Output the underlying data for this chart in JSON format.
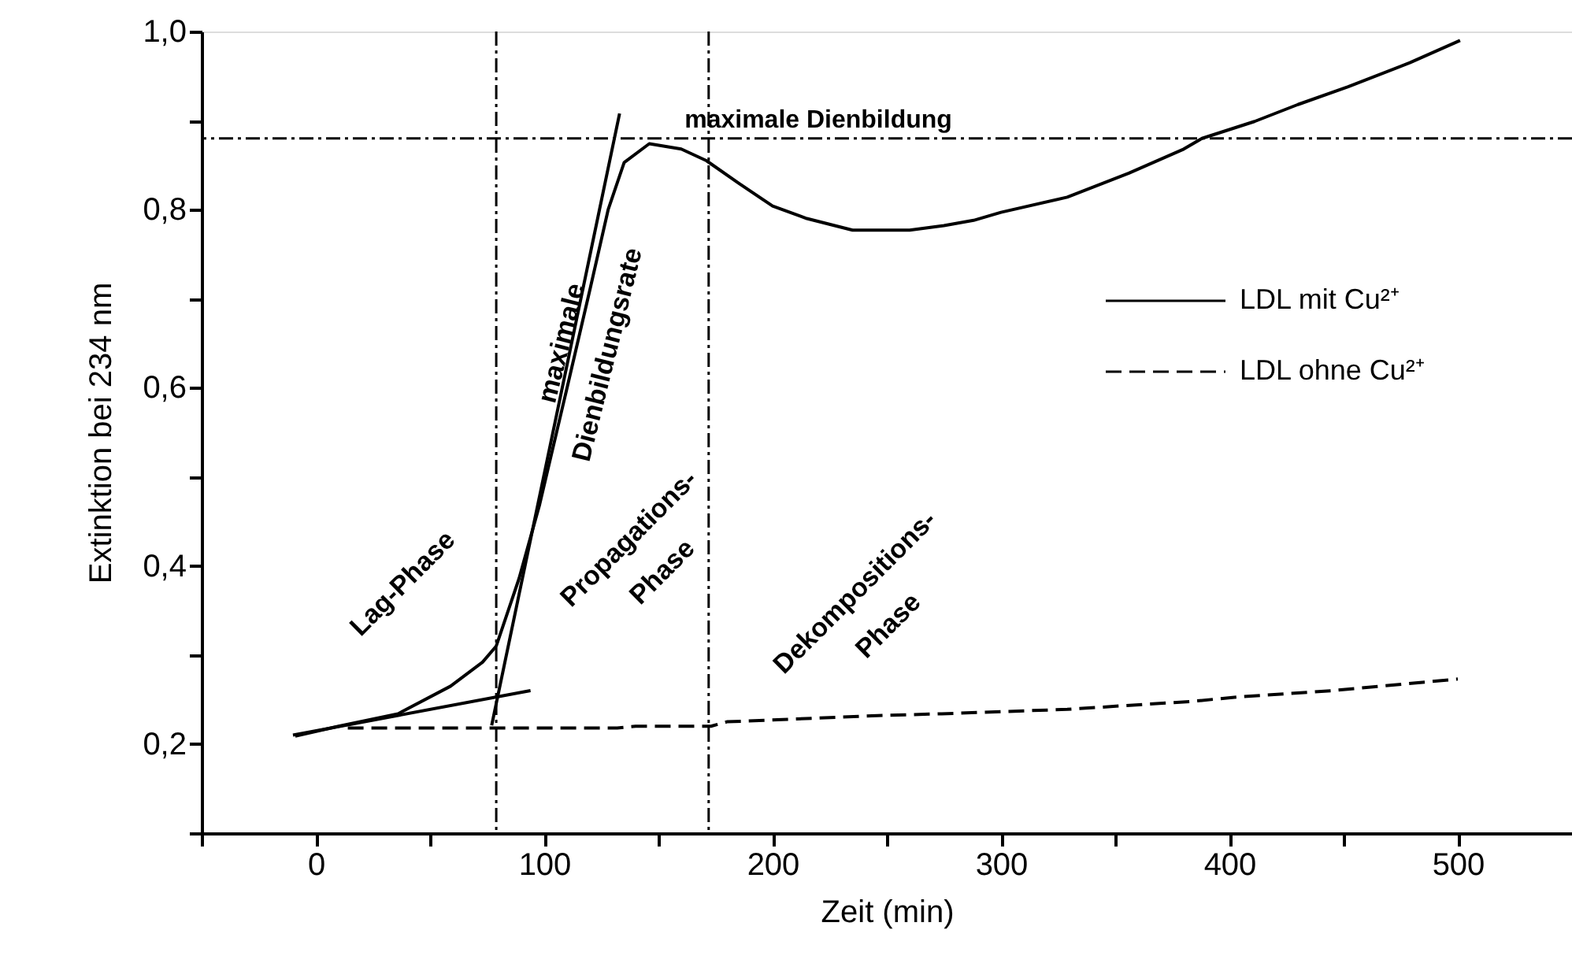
{
  "chart_data": {
    "type": "line",
    "xlabel": "Zeit (min)",
    "ylabel": "Extinktion bei 234 nm",
    "xlim": [
      -50,
      550
    ],
    "xticks": [
      {
        "value": -50,
        "label": null
      },
      0,
      {
        "value": 50,
        "label": null
      },
      100,
      {
        "value": 150,
        "label": null
      },
      200,
      {
        "value": 250,
        "label": null
      },
      300,
      {
        "value": 350,
        "label": null
      },
      400,
      {
        "value": 450,
        "label": null
      },
      500
    ],
    "ylim": [
      0.1,
      1.0
    ],
    "yticks": [
      {
        "value": 0.1,
        "label": null
      },
      {
        "value": 0.2,
        "label": "0,2"
      },
      {
        "value": 0.3,
        "label": null
      },
      {
        "value": 0.4,
        "label": "0,4"
      },
      {
        "value": 0.5,
        "label": null
      },
      {
        "value": 0.6,
        "label": "0,6"
      },
      {
        "value": 0.7,
        "label": null
      },
      {
        "value": 0.8,
        "label": "0,8"
      },
      {
        "value": 0.9,
        "label": null
      },
      {
        "value": 1.0,
        "label": "1,0"
      }
    ],
    "grid": false,
    "legend": "right",
    "marker": "none",
    "series": [
      {
        "name": "LDL mit Cu²⁺",
        "color": "#000000",
        "line_style": "solid",
        "x": [
          -9,
          10,
          36,
          59,
          73,
          79,
          89,
          98,
          110,
          120,
          128,
          135,
          146,
          160,
          171,
          185,
          200,
          215,
          235,
          260,
          275,
          288,
          300,
          329,
          356,
          380,
          388,
          411,
          430,
          452,
          479,
          501
        ],
        "values": [
          0.209,
          0.22,
          0.234,
          0.265,
          0.292,
          0.31,
          0.386,
          0.469,
          0.6,
          0.71,
          0.8,
          0.853,
          0.874,
          0.868,
          0.855,
          0.83,
          0.804,
          0.79,
          0.777,
          0.777,
          0.782,
          0.788,
          0.797,
          0.814,
          0.841,
          0.868,
          0.88,
          0.899,
          0.918,
          0.938,
          0.965,
          0.99
        ]
      },
      {
        "name": "LDL ohne Cu²⁺",
        "color": "#000000",
        "line_style": "dashed",
        "x": [
          14,
          79,
          132,
          140,
          173,
          180,
          246,
          274,
          329,
          384,
          404,
          445,
          500
        ],
        "values": [
          0.218,
          0.218,
          0.218,
          0.22,
          0.22,
          0.225,
          0.232,
          0.234,
          0.239,
          0.248,
          0.253,
          0.26,
          0.273
        ]
      },
      {
        "type": "line",
        "color": "#000000",
        "line_style": "solid",
        "x": [
          -10,
          94
        ],
        "values": [
          0.21,
          0.26
        ]
      },
      {
        "type": "line",
        "color": "#000000",
        "line_style": "solid",
        "x": [
          77,
          133
        ],
        "values": [
          0.221,
          0.908
        ]
      }
    ],
    "ref_lines": [
      {
        "axis": "y",
        "value": 0.88,
        "label": "maximale Dienbildung",
        "line_style": "dashed",
        "color": "#000000"
      },
      {
        "axis": "x",
        "value": 79,
        "line_style": "dashed",
        "color": "#000000"
      },
      {
        "axis": "x",
        "value": 172,
        "line_style": "dashed",
        "color": "#000000"
      }
    ],
    "annotations": [
      "Lag-Phase",
      "maximale\nDienbildungsrate",
      "Propagations-\nPhase",
      "Dekompositions-\nPhase"
    ]
  }
}
